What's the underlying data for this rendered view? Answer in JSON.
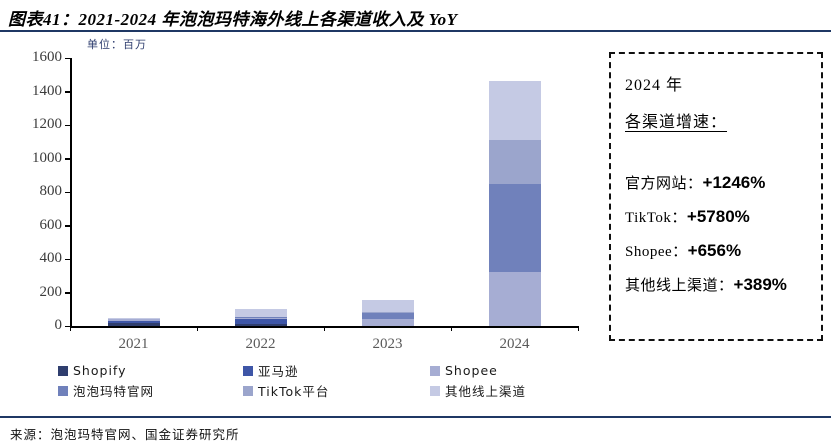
{
  "title": "图表41：2021-2024 年泡泡玛特海外线上各渠道收入及 YoY",
  "unit_label": "单位：百万",
  "source": "来源：泡泡玛特官网、国金证券研究所",
  "annotation_box": {
    "year_line": "2024 年",
    "heading": "各渠道增速：",
    "items": [
      {
        "label": "官方网站：",
        "value": "+1246%"
      },
      {
        "label": "TikTok：",
        "value": "+5780%"
      },
      {
        "label": "Shopee：",
        "value": "+656%"
      },
      {
        "label": "其他线上渠道：",
        "value": "+389%"
      }
    ]
  },
  "chart_data": {
    "type": "bar",
    "stacked": true,
    "title": "2021-2024 年泡泡玛特海外线上各渠道收入及 YoY",
    "unit": "百万",
    "categories": [
      "2021",
      "2022",
      "2023",
      "2024"
    ],
    "series": [
      {
        "name": "Shopify",
        "color": "#2F3E6E",
        "values": [
          16,
          10,
          0,
          0
        ]
      },
      {
        "name": "亚马逊",
        "color": "#3E56A7",
        "values": [
          12,
          32,
          0,
          0
        ]
      },
      {
        "name": "Shopee",
        "color": "#A6ADD3",
        "values": [
          14,
          8,
          42,
          320
        ]
      },
      {
        "name": "泡泡玛特官网",
        "color": "#7081BB",
        "values": [
          0,
          4,
          39,
          530
        ]
      },
      {
        "name": "TikTok平台",
        "color": "#9BA5CC",
        "values": [
          0,
          0,
          4,
          260
        ]
      },
      {
        "name": "其他线上渠道",
        "color": "#C5CAE4",
        "values": [
          4,
          48,
          72,
          350
        ]
      }
    ],
    "totals": [
      46,
      102,
      157,
      1460
    ],
    "ylim": [
      0,
      1600
    ],
    "yticks": [
      0,
      200,
      400,
      600,
      800,
      1000,
      1200,
      1400,
      1600
    ],
    "xlabel": "",
    "ylabel": "",
    "grid": false,
    "legend_position": "bottom"
  },
  "accent_rule_color": "#1F3864"
}
